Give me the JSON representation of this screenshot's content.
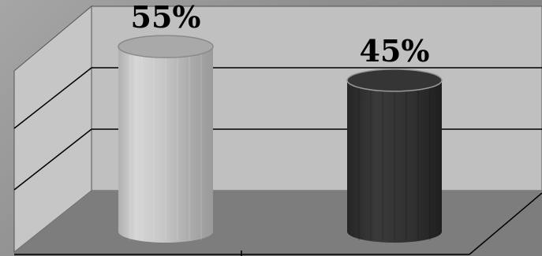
{
  "chart_data": {
    "type": "bar",
    "style": "3d-cylinder",
    "categories": [
      "",
      ""
    ],
    "series": [
      {
        "values": [
          55,
          45
        ]
      }
    ],
    "data_labels": [
      "55%",
      "45%"
    ],
    "unit": "%",
    "ylim": [
      0,
      60
    ],
    "grid": true,
    "legend": "none",
    "colors": {
      "bar_1": "#c4c4c4",
      "bar_2": "#2e2e2e",
      "back_wall": "#c0c0c0",
      "side_wall": "#c6c6c6",
      "floor": "#7d7d7d",
      "gridline": "#000000"
    }
  }
}
